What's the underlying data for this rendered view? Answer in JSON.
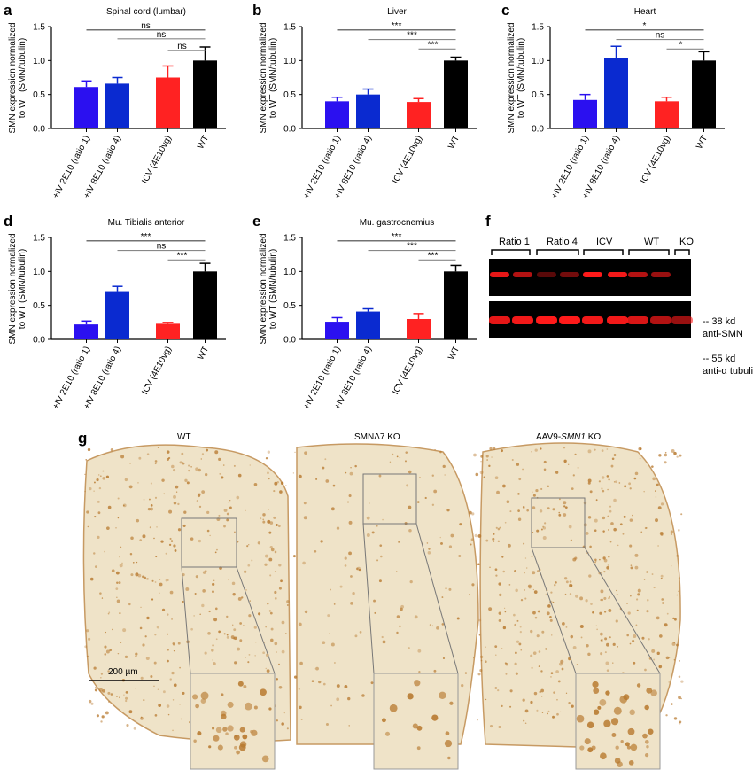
{
  "panel_labels": [
    "a",
    "b",
    "c",
    "d",
    "e",
    "f",
    "g"
  ],
  "colors": {
    "ratio1": "#2b10f0",
    "ratio4": "#0a2ad0",
    "icv": "#ff2222",
    "wt": "#000000",
    "blot_band": "#ff1a1a",
    "tissue": "#efe3c8",
    "stain": "#b7782d"
  },
  "chart_data": [
    {
      "type": "bar",
      "title": "Spinal cord (lumbar)",
      "ylabel": "SMN expression normalized\nto WT (SMN/tubulin)",
      "ylim": [
        0,
        1.5
      ],
      "yticks": [
        "0.0",
        "0.5",
        "1.0",
        "1.5"
      ],
      "categories": [
        "+IV 2E10 (ratio 1)",
        "+IV 8E10 (ratio 4)",
        "ICV (4E10vg)",
        "WT"
      ],
      "values": [
        0.61,
        0.66,
        0.75,
        1.0
      ],
      "errors": [
        0.09,
        0.09,
        0.17,
        0.2
      ],
      "significance": [
        {
          "from": 0,
          "to": 3,
          "label": "ns"
        },
        {
          "from": 1,
          "to": 3,
          "label": "ns"
        },
        {
          "from": 2,
          "to": 3,
          "label": "ns"
        }
      ]
    },
    {
      "type": "bar",
      "title": "Liver",
      "ylabel": "SMN expression normalized\nto WT (SMN/tubulin)",
      "ylim": [
        0,
        1.5
      ],
      "yticks": [
        "0.0",
        "0.5",
        "1.0",
        "1.5"
      ],
      "categories": [
        "+IV 2E10 (ratio 1)",
        "+IV 8E10 (ratio 4)",
        "ICV (4E10vg)",
        "WT"
      ],
      "values": [
        0.4,
        0.5,
        0.39,
        1.0
      ],
      "errors": [
        0.06,
        0.08,
        0.05,
        0.05
      ],
      "significance": [
        {
          "from": 0,
          "to": 3,
          "label": "***"
        },
        {
          "from": 1,
          "to": 3,
          "label": "***"
        },
        {
          "from": 2,
          "to": 3,
          "label": "***"
        }
      ]
    },
    {
      "type": "bar",
      "title": "Heart",
      "ylabel": "SMN expression normalized\nto WT (SMN/tubulin)",
      "ylim": [
        0,
        1.5
      ],
      "yticks": [
        "0.0",
        "0.5",
        "1.0",
        "1.5"
      ],
      "categories": [
        "+IV 2E10 (ratio 1)",
        "+IV 8E10 (ratio 4)",
        "ICV (4E10vg)",
        "WT"
      ],
      "values": [
        0.42,
        1.04,
        0.4,
        1.0
      ],
      "errors": [
        0.08,
        0.17,
        0.06,
        0.13
      ],
      "significance": [
        {
          "from": 0,
          "to": 3,
          "label": "*"
        },
        {
          "from": 1,
          "to": 3,
          "label": "ns"
        },
        {
          "from": 2,
          "to": 3,
          "label": "*"
        }
      ]
    },
    {
      "type": "bar",
      "title": "Mu. Tibialis anterior",
      "ylabel": "SMN expression normalized\nto WT (SMN/tubulin)",
      "ylim": [
        0,
        1.5
      ],
      "yticks": [
        "0.0",
        "0.5",
        "1.0",
        "1.5"
      ],
      "categories": [
        "+IV 2E10 (ratio 1)",
        "+IV 8E10 (ratio 4)",
        "ICV (4E10vg)",
        "WT"
      ],
      "values": [
        0.22,
        0.71,
        0.23,
        1.0
      ],
      "errors": [
        0.05,
        0.07,
        0.02,
        0.12
      ],
      "significance": [
        {
          "from": 0,
          "to": 3,
          "label": "***"
        },
        {
          "from": 1,
          "to": 3,
          "label": "ns"
        },
        {
          "from": 2,
          "to": 3,
          "label": "***"
        }
      ]
    },
    {
      "type": "bar",
      "title": "Mu. gastrocnemius",
      "ylabel": "SMN expression normalized\nto WT (SMN/tubulin)",
      "ylim": [
        0,
        1.5
      ],
      "yticks": [
        "0.0",
        "0.5",
        "1.0",
        "1.5"
      ],
      "categories": [
        "+IV 2E10 (ratio 1)",
        "+IV 8E10 (ratio 4)",
        "ICV (4E10vg)",
        "WT"
      ],
      "values": [
        0.26,
        0.41,
        0.3,
        1.0
      ],
      "errors": [
        0.06,
        0.04,
        0.08,
        0.09
      ],
      "significance": [
        {
          "from": 0,
          "to": 3,
          "label": "***"
        },
        {
          "from": 1,
          "to": 3,
          "label": "***"
        },
        {
          "from": 2,
          "to": 3,
          "label": "***"
        }
      ]
    }
  ],
  "blot": {
    "groups": [
      "Ratio 1",
      "Ratio 4",
      "ICV",
      "WT",
      "KO"
    ],
    "top_marker": "-- 38 kd",
    "top_antibody": "anti-SMN",
    "bottom_marker": "-- 55 kd",
    "bottom_antibody": "anti-α tubulin",
    "smn_intensity": [
      0.9,
      0.7,
      0.35,
      0.45,
      1.0,
      0.95,
      0.7,
      0.6,
      0.0
    ],
    "tubulin_intensity": [
      0.9,
      0.95,
      1.0,
      1.0,
      0.95,
      0.95,
      0.85,
      0.7,
      0.6
    ]
  },
  "histology": {
    "titles": [
      "WT",
      "SMNΔ7 KO",
      "AAV9-",
      "SMN1",
      " KO"
    ],
    "scale_bar": "200 µm"
  }
}
